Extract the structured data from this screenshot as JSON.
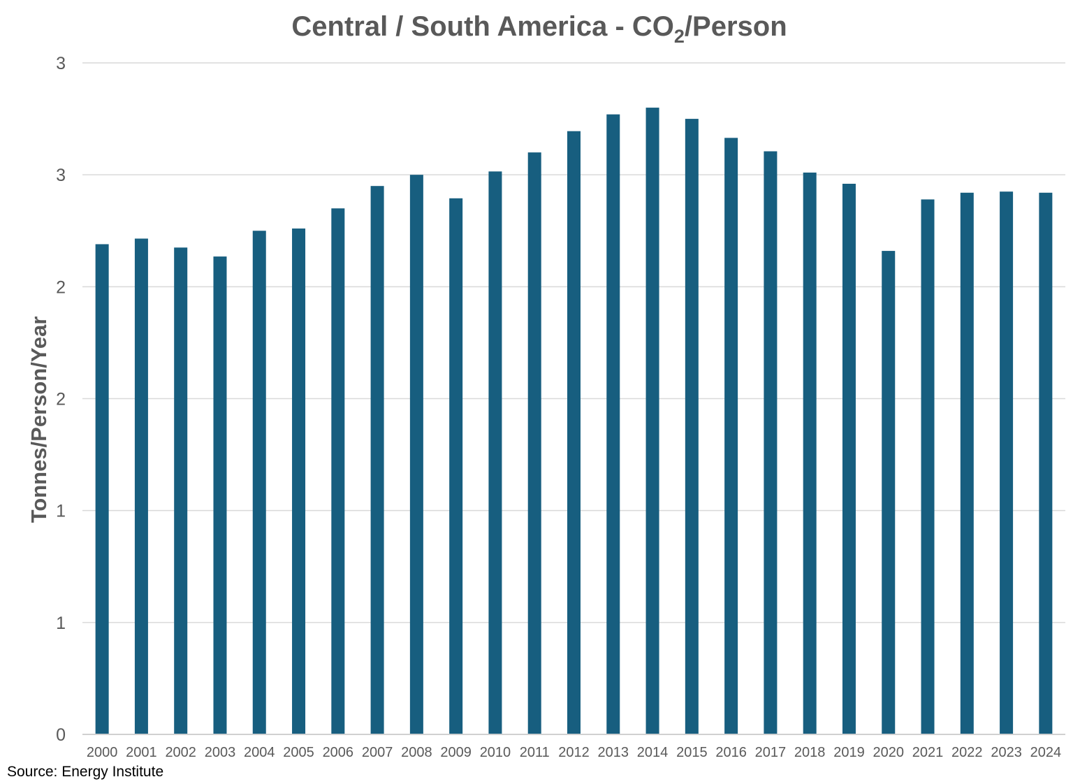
{
  "chart_data": {
    "type": "bar",
    "title": "Central / South America - CO",
    "title_sub": "2",
    "title_suffix": "/Person",
    "ylabel": "Tonnes/Person/Year",
    "xlabel": "",
    "ylim": [
      0,
      3
    ],
    "yticks": [
      0,
      0.5,
      1,
      1.5,
      2,
      2.5,
      3
    ],
    "ytick_labels": [
      "0",
      "1",
      "1",
      "2",
      "2",
      "3",
      "3"
    ],
    "grid": true,
    "categories": [
      "2000",
      "2001",
      "2002",
      "2003",
      "2004",
      "2005",
      "2006",
      "2007",
      "2008",
      "2009",
      "2010",
      "2011",
      "2012",
      "2013",
      "2014",
      "2015",
      "2016",
      "2017",
      "2018",
      "2019",
      "2020",
      "2021",
      "2022",
      "2023",
      "2024"
    ],
    "values": [
      2.19,
      2.215,
      2.175,
      2.135,
      2.25,
      2.26,
      2.35,
      2.45,
      2.5,
      2.395,
      2.515,
      2.6,
      2.695,
      2.77,
      2.8,
      2.75,
      2.665,
      2.605,
      2.51,
      2.46,
      2.16,
      2.39,
      2.42,
      2.425,
      2.42
    ],
    "bar_color": "#175e7f",
    "source": "Source: Energy Institute"
  }
}
